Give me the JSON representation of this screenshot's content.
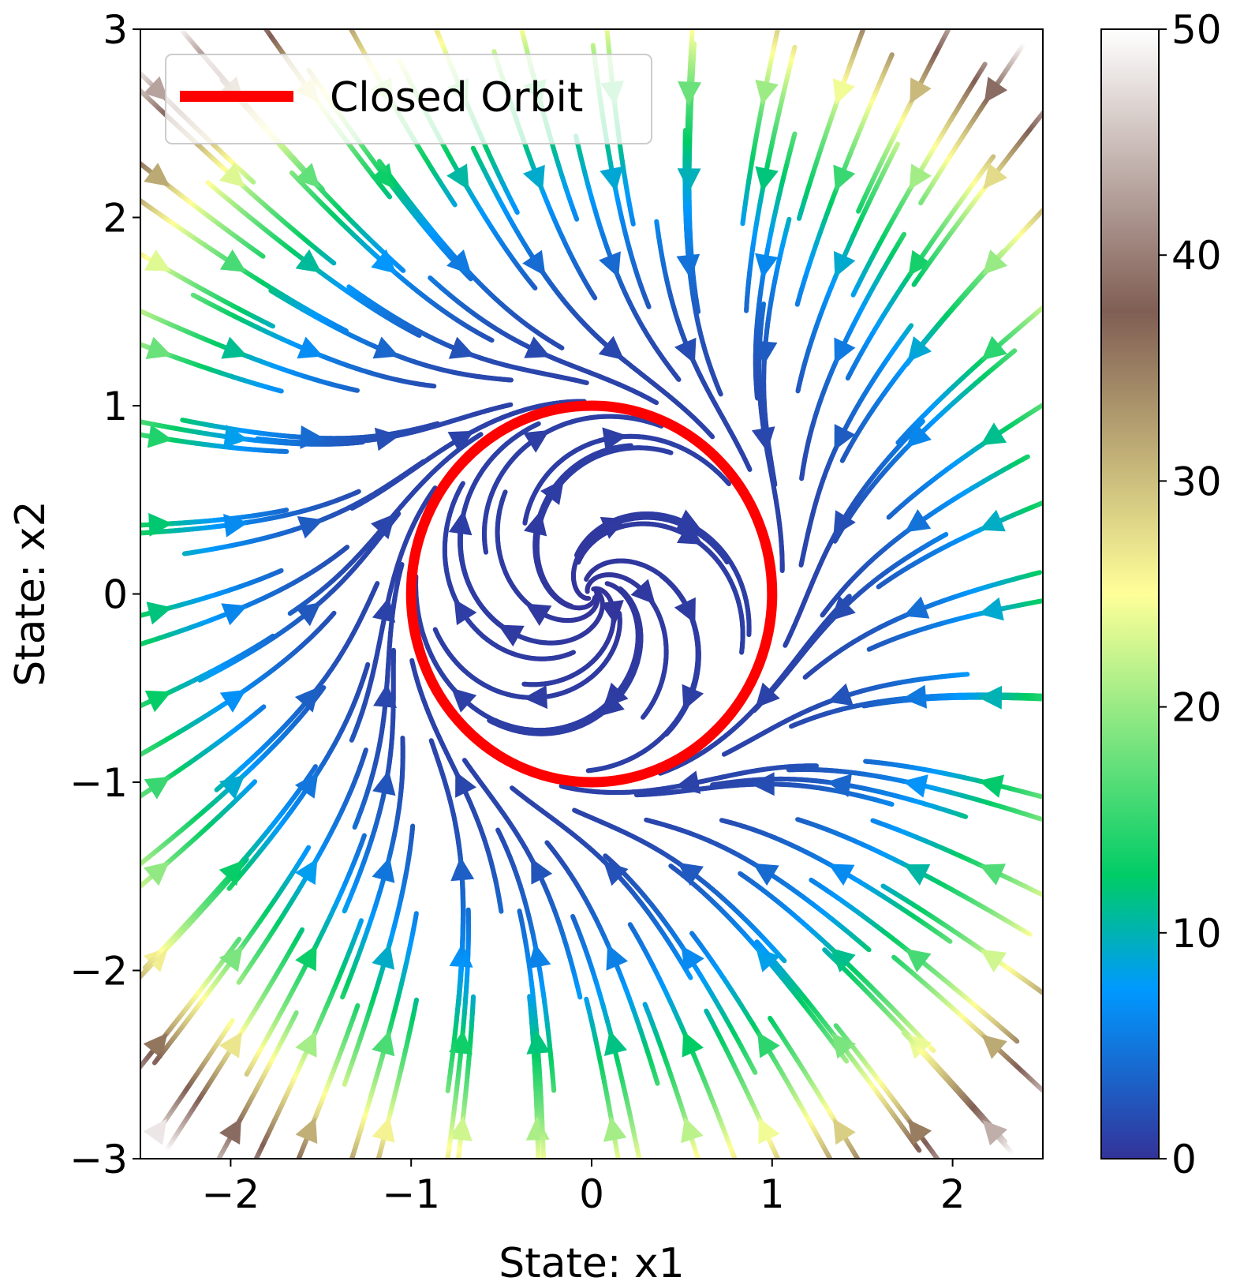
{
  "chart_data": {
    "type": "streamplot",
    "xlabel": "State: x1",
    "ylabel": "State: x2",
    "xlim": [
      -2.5,
      2.5
    ],
    "ylim": [
      -3,
      3
    ],
    "xticks": [
      -2,
      -1,
      0,
      1,
      2
    ],
    "yticks": [
      -3,
      -2,
      -1,
      0,
      1,
      2,
      3
    ],
    "x_tick_labels": [
      "−2",
      "−1",
      "0",
      "1",
      "2"
    ],
    "y_tick_labels": [
      "−3",
      "−2",
      "−1",
      "0",
      "1",
      "2",
      "3"
    ],
    "vector_field": {
      "dx1": "x2 + x1*(1 - x1^2 - x2^2)",
      "dx2": "-x1 + x2*(1 - x1^2 - x2^2)",
      "color_by": "speed"
    },
    "colorbar": {
      "colormap": "terrain",
      "range": [
        0,
        50
      ],
      "ticks": [
        0,
        10,
        20,
        30,
        40,
        50
      ],
      "tick_labels": [
        "0",
        "10",
        "20",
        "30",
        "40",
        "50"
      ]
    },
    "closed_orbit": {
      "shape": "circle",
      "center": [
        0,
        0
      ],
      "radius": 1.0,
      "color": "#ff0000"
    },
    "legend": {
      "position": "upper-left",
      "entries": [
        {
          "label": "Closed Orbit",
          "color": "#ff0000"
        }
      ]
    }
  }
}
